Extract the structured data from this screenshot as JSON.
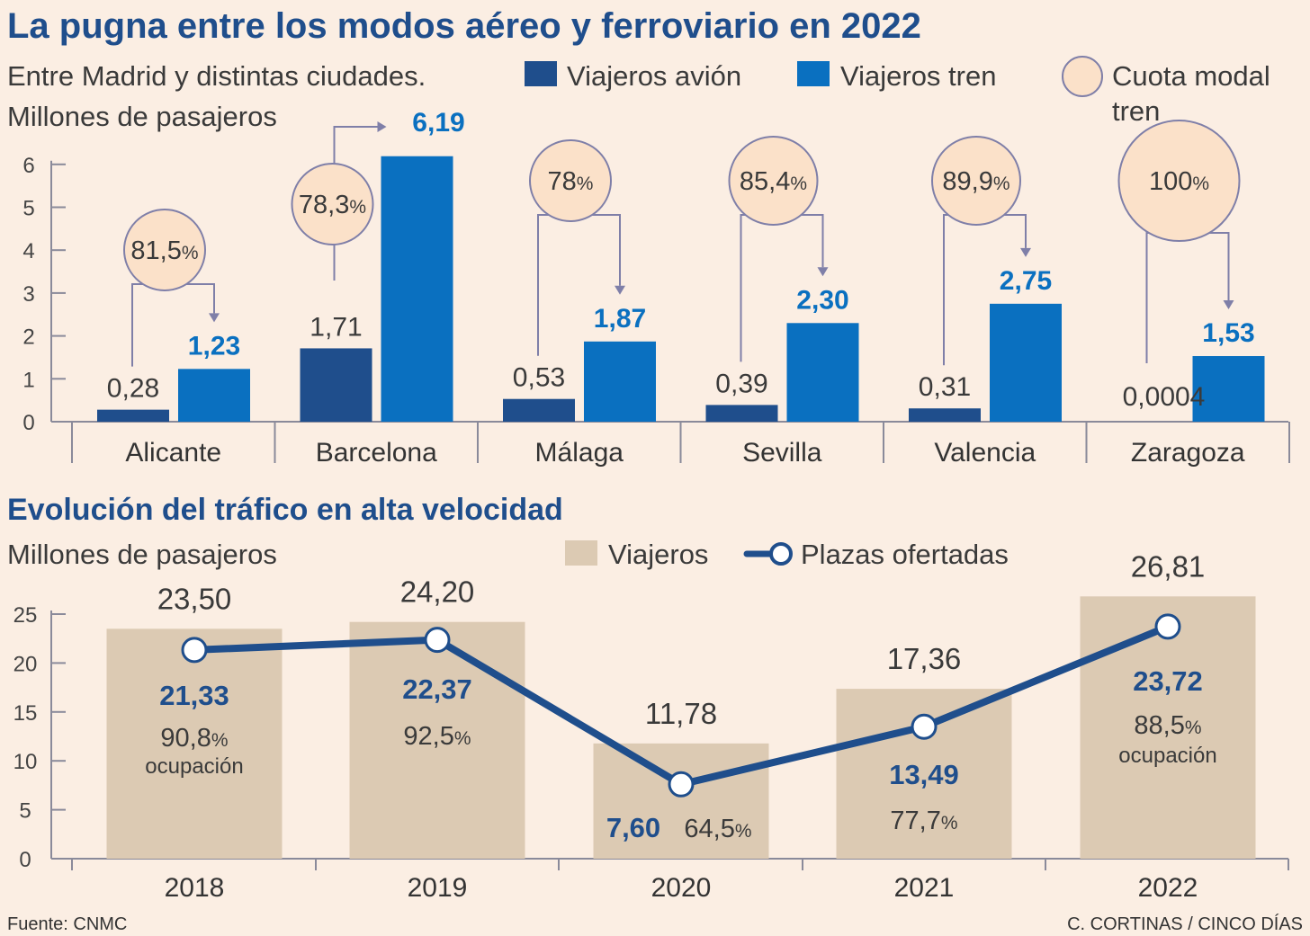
{
  "title": "La pugna entre los modos aéreo y ferroviario en 2022",
  "subtitle_line1": "Entre Madrid y distintas ciudades.",
  "subtitle_line2": "Millones de pasajeros",
  "legend": {
    "plane": "Viajeros avión",
    "train": "Viajeros tren",
    "share_line1": "Cuota modal",
    "share_line2": "tren"
  },
  "chart2_title": "Evolución del tráfico en alta velocidad",
  "chart2_subtitle": "Millones de pasajeros",
  "legend2": {
    "travelers": "Viajeros",
    "seats": "Plazas ofertadas"
  },
  "occupancy_word": "ocupación",
  "footer": {
    "source": "Fuente: CNMC",
    "credit": "C. CORTINAS / CINCO DÍAS"
  },
  "colors": {
    "plane": "#1f4e8c",
    "train": "#0a70c0",
    "share_circle": "#fbe1c9",
    "circle_stroke": "#7f7fa8",
    "travelers_bar": "#dccab3",
    "seats_line": "#1f4e8c",
    "background": "#fbeee3"
  },
  "chart_data": [
    {
      "type": "bar",
      "title": "La pugna entre los modos aéreo y ferroviario en 2022",
      "ylabel": "Millones de pasajeros",
      "ylim": [
        0,
        6
      ],
      "yticks": [
        0,
        1,
        2,
        3,
        4,
        5,
        6
      ],
      "categories": [
        "Alicante",
        "Barcelona",
        "Málaga",
        "Sevilla",
        "Valencia",
        "Zaragoza"
      ],
      "series": [
        {
          "name": "Viajeros avión",
          "values": [
            0.28,
            1.71,
            0.53,
            0.39,
            0.31,
            0.0004
          ],
          "labels": [
            "0,28",
            "1,71",
            "0,53",
            "0,39",
            "0,31",
            "0,0004"
          ]
        },
        {
          "name": "Viajeros tren",
          "values": [
            1.23,
            6.19,
            1.87,
            2.3,
            2.75,
            1.53
          ],
          "labels": [
            "1,23",
            "6,19",
            "1,87",
            "2,30",
            "2,75",
            "1,53"
          ]
        }
      ],
      "share": {
        "name": "Cuota modal tren",
        "values": [
          81.5,
          78.3,
          78,
          85.4,
          89.9,
          100
        ],
        "labels": [
          "81,5",
          "78,3",
          "78",
          "85,4",
          "89,9",
          "100"
        ],
        "unit": "%"
      }
    },
    {
      "type": "bar",
      "title": "Evolución del tráfico en alta velocidad",
      "ylabel": "Millones de pasajeros",
      "ylim": [
        0,
        25
      ],
      "yticks": [
        0,
        5,
        10,
        15,
        20,
        25
      ],
      "categories": [
        "2018",
        "2019",
        "2020",
        "2021",
        "2022"
      ],
      "series": [
        {
          "name": "Viajeros",
          "values": [
            23.5,
            24.2,
            11.78,
            17.36,
            26.81
          ],
          "labels": [
            "23,50",
            "24,20",
            "11,78",
            "17,36",
            "26,81"
          ]
        },
        {
          "name": "Plazas ofertadas",
          "values": [
            21.33,
            22.37,
            7.6,
            13.49,
            23.72
          ],
          "labels": [
            "21,33",
            "22,37",
            "7,60",
            "13,49",
            "23,72"
          ]
        }
      ],
      "occupancy": {
        "values": [
          90.8,
          92.5,
          64.5,
          77.7,
          88.5
        ],
        "labels": [
          "90,8",
          "92,5",
          "64,5",
          "77,7",
          "88,5"
        ],
        "unit": "%"
      }
    }
  ]
}
